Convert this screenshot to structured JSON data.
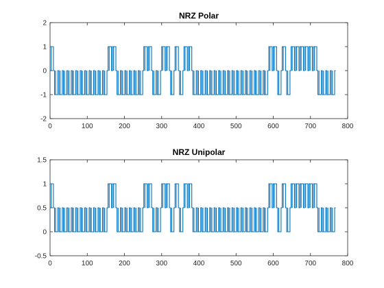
{
  "chart_data": [
    {
      "type": "line",
      "title": "NRZ Polar",
      "xlabel": "",
      "ylabel": "",
      "xlim": [
        0,
        800
      ],
      "ylim": [
        -2,
        2
      ],
      "xticks": [
        0,
        100,
        200,
        300,
        400,
        500,
        600,
        700,
        800
      ],
      "yticks": [
        -2,
        -1,
        0,
        1,
        2
      ],
      "grid": false,
      "color": "#0072bd",
      "bits": [
        1,
        0,
        0,
        0,
        0,
        0,
        0,
        0,
        0,
        0,
        0,
        0,
        0,
        1,
        1,
        0,
        0,
        0,
        0,
        0,
        0,
        1,
        1,
        0,
        0,
        1,
        1,
        0,
        1,
        0,
        1,
        1,
        0,
        0,
        0,
        0,
        0,
        0,
        0,
        0,
        0,
        0,
        0,
        0,
        0,
        0,
        0,
        0,
        0,
        1,
        1,
        0,
        1,
        0,
        1,
        1,
        1,
        1,
        1,
        1,
        0,
        0,
        0,
        0
      ],
      "samples_per_bit": 12,
      "pulse_pattern": "each bit: 0 -> value, samples 3-9 -> level, 9-12 -> 0",
      "levels": {
        "one": 1,
        "zero": -1
      }
    },
    {
      "type": "line",
      "title": "NRZ Unipolar",
      "xlabel": "",
      "ylabel": "",
      "xlim": [
        0,
        800
      ],
      "ylim": [
        -0.5,
        1.5
      ],
      "xticks": [
        0,
        100,
        200,
        300,
        400,
        500,
        600,
        700,
        800
      ],
      "yticks": [
        -0.5,
        0,
        0.5,
        1,
        1.5
      ],
      "grid": false,
      "color": "#0072bd",
      "bits": [
        1,
        0,
        0,
        0,
        0,
        0,
        0,
        0,
        0,
        0,
        0,
        0,
        0,
        1,
        1,
        0,
        0,
        0,
        0,
        0,
        0,
        1,
        1,
        0,
        0,
        1,
        1,
        0,
        1,
        0,
        1,
        1,
        0,
        0,
        0,
        0,
        0,
        0,
        0,
        0,
        0,
        0,
        0,
        0,
        0,
        0,
        0,
        0,
        0,
        1,
        1,
        0,
        1,
        0,
        1,
        1,
        1,
        1,
        1,
        1,
        0,
        0,
        0,
        0
      ],
      "samples_per_bit": 12,
      "pulse_pattern": "each bit: baseline 0.5, pulse to level",
      "levels": {
        "one": 1,
        "zero": 0
      }
    }
  ]
}
